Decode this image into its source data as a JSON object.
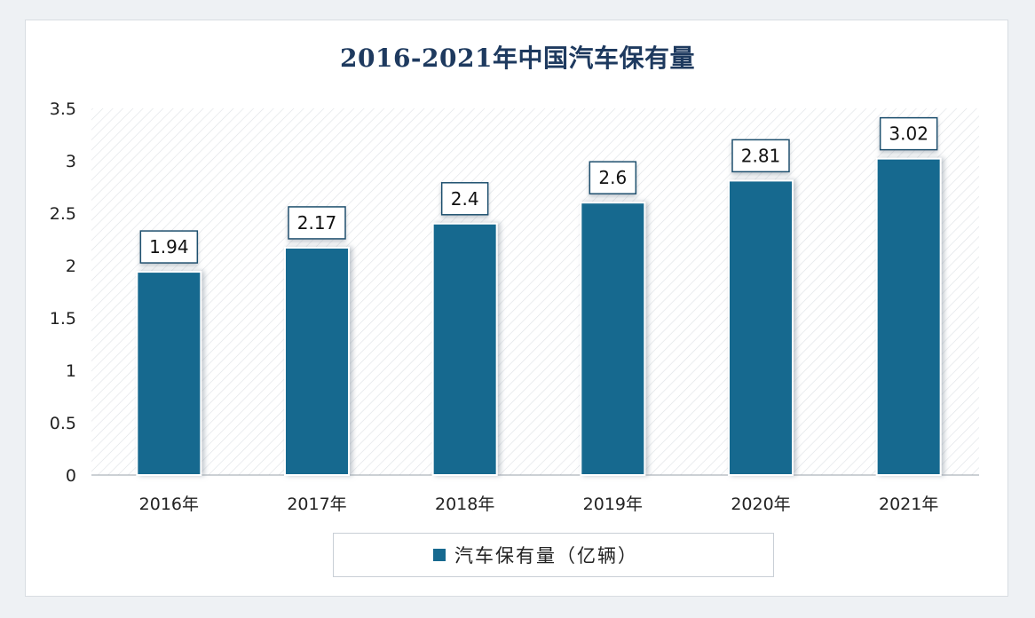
{
  "chart_data": {
    "type": "bar",
    "title": "2016-2021年中国汽车保有量",
    "categories": [
      "2016年",
      "2017年",
      "2018年",
      "2019年",
      "2020年",
      "2021年"
    ],
    "series": [
      {
        "name": "汽车保有量（亿辆）",
        "values": [
          1.94,
          2.17,
          2.4,
          2.6,
          2.81,
          3.02
        ],
        "data_labels": [
          "1.94",
          "2.17",
          "2.4",
          "2.6",
          "2.81",
          "3.02"
        ]
      }
    ],
    "y_ticks": [
      "0",
      "0.5",
      "1",
      "1.5",
      "2",
      "2.5",
      "3",
      "3.5"
    ],
    "ylim": [
      0,
      3.5
    ],
    "grid": false,
    "legend_position": "bottom",
    "colors": {
      "bar": "#17698f",
      "title": "#1e3a5f",
      "plot_hatch": "#d5dade"
    }
  }
}
